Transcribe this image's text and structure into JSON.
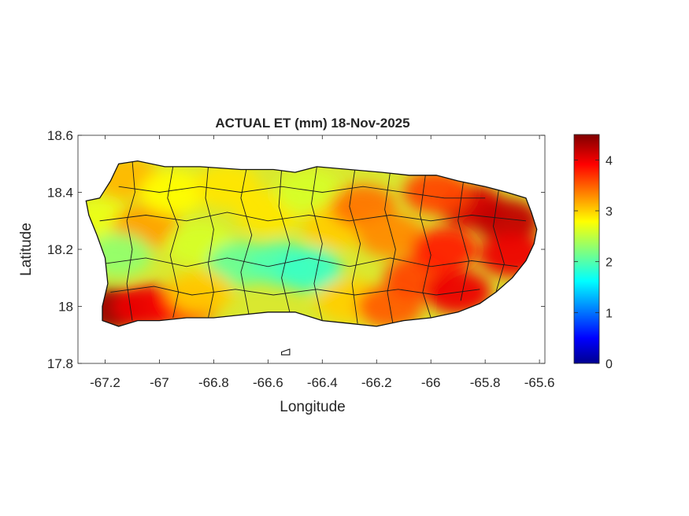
{
  "chart_data": {
    "type": "heatmap",
    "title": "ACTUAL ET (mm) 18-Nov-2025",
    "xlabel": "Longitude",
    "ylabel": "Latitude",
    "xlim": [
      -67.3,
      -65.58
    ],
    "ylim": [
      17.8,
      18.6
    ],
    "xticks": [
      -67.2,
      -67,
      -66.8,
      -66.6,
      -66.4,
      -66.2,
      -66,
      -65.8,
      -65.6
    ],
    "xtick_labels": [
      "-67.2",
      "-67",
      "-66.8",
      "-66.6",
      "-66.4",
      "-66.2",
      "-66",
      "-65.8",
      "-65.6"
    ],
    "yticks": [
      17.8,
      18,
      18.2,
      18.4,
      18.6
    ],
    "ytick_labels": [
      "17.8",
      "18",
      "18.2",
      "18.4",
      "18.6"
    ],
    "colorbar": {
      "colormap": "jet",
      "range": [
        0,
        4.5
      ],
      "ticks": [
        0,
        1,
        2,
        3,
        4
      ],
      "tick_labels": [
        "0",
        "1",
        "2",
        "3",
        "4"
      ]
    },
    "grid": false,
    "region_values": [
      {
        "lon": -67.17,
        "lat": 17.99,
        "value": 4.4
      },
      {
        "lon": -67.05,
        "lat": 18.0,
        "value": 4.0
      },
      {
        "lon": -66.9,
        "lat": 18.01,
        "value": 3.9
      },
      {
        "lon": -67.22,
        "lat": 18.3,
        "value": 2.7
      },
      {
        "lon": -67.12,
        "lat": 18.45,
        "value": 3.1
      },
      {
        "lon": -67.05,
        "lat": 18.28,
        "value": 3.2
      },
      {
        "lon": -67.15,
        "lat": 18.18,
        "value": 2.3
      },
      {
        "lon": -66.95,
        "lat": 18.4,
        "value": 2.8
      },
      {
        "lon": -66.85,
        "lat": 18.22,
        "value": 2.6
      },
      {
        "lon": -66.7,
        "lat": 18.15,
        "value": 2.1
      },
      {
        "lon": -66.55,
        "lat": 18.15,
        "value": 2.0
      },
      {
        "lon": -66.45,
        "lat": 18.13,
        "value": 1.9
      },
      {
        "lon": -66.6,
        "lat": 18.33,
        "value": 2.9
      },
      {
        "lon": -66.45,
        "lat": 18.4,
        "value": 2.6
      },
      {
        "lon": -66.35,
        "lat": 18.28,
        "value": 3.0
      },
      {
        "lon": -66.25,
        "lat": 18.35,
        "value": 3.4
      },
      {
        "lon": -66.15,
        "lat": 18.25,
        "value": 3.3
      },
      {
        "lon": -66.3,
        "lat": 18.02,
        "value": 3.0
      },
      {
        "lon": -66.15,
        "lat": 18.0,
        "value": 3.5
      },
      {
        "lon": -66.05,
        "lat": 18.1,
        "value": 3.6
      },
      {
        "lon": -65.95,
        "lat": 18.2,
        "value": 3.8
      },
      {
        "lon": -65.9,
        "lat": 18.05,
        "value": 4.0
      },
      {
        "lon": -65.85,
        "lat": 18.35,
        "value": 4.1
      },
      {
        "lon": -65.72,
        "lat": 18.3,
        "value": 4.2
      },
      {
        "lon": -65.7,
        "lat": 18.18,
        "value": 4.0
      },
      {
        "lon": -65.98,
        "lat": 18.4,
        "value": 3.6
      },
      {
        "lon": -66.75,
        "lat": 18.42,
        "value": 2.9
      },
      {
        "lon": -66.85,
        "lat": 18.05,
        "value": 3.0
      }
    ]
  }
}
